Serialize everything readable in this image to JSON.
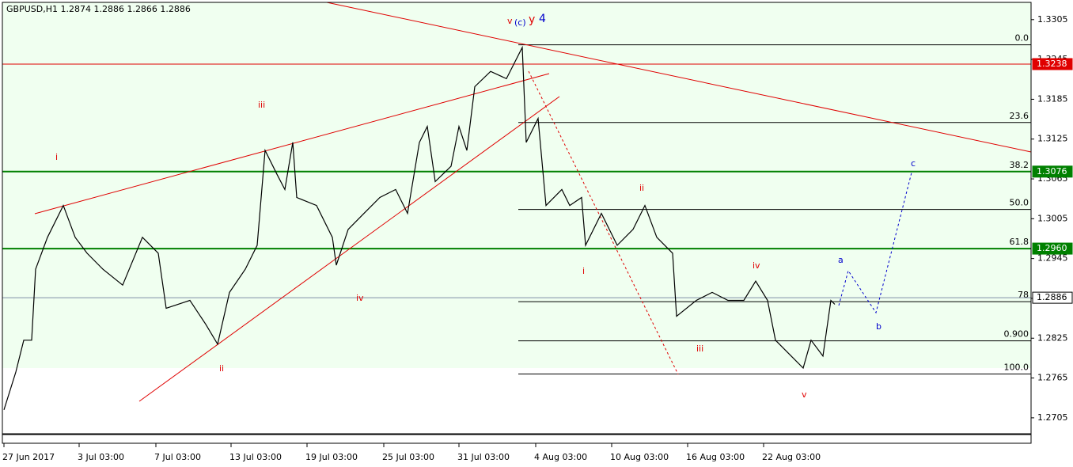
{
  "chart_data": {
    "type": "line",
    "title": "GBPUSD,H1  1.2874 1.2886 1.2866 1.2886",
    "x": [
      0,
      15,
      25,
      35,
      40,
      55,
      75,
      90,
      105,
      125,
      150,
      175,
      195,
      205,
      235,
      255,
      270,
      285,
      305,
      320,
      330,
      345,
      355,
      365,
      370,
      395,
      415,
      420,
      435,
      455,
      475,
      495,
      510,
      525,
      535,
      545,
      565,
      575,
      585,
      595,
      615,
      635,
      655,
      660,
      675,
      685,
      705,
      715,
      730,
      735,
      755,
      775,
      795,
      810,
      825,
      845,
      850,
      875,
      895,
      915,
      935,
      950,
      965,
      975,
      995,
      1010,
      1020,
      1035,
      1045,
      1050
    ],
    "series": [
      {
        "name": "GBPUSD",
        "color": "#000000",
        "values": [
          1.2717,
          1.2774,
          1.2822,
          1.2822,
          1.2929,
          1.2977,
          1.3025,
          1.2977,
          1.2953,
          1.2929,
          1.2905,
          1.2977,
          1.2953,
          1.287,
          1.2882,
          1.2846,
          1.2816,
          1.2894,
          1.2929,
          1.2965,
          1.3108,
          1.3072,
          1.3049,
          1.312,
          1.3037,
          1.3025,
          1.2977,
          1.2935,
          1.2989,
          1.3013,
          1.3037,
          1.3049,
          1.3013,
          1.312,
          1.3144,
          1.3061,
          1.3084,
          1.3144,
          1.3108,
          1.3204,
          1.3227,
          1.3216,
          1.3263,
          1.312,
          1.3156,
          1.3025,
          1.3049,
          1.3025,
          1.3037,
          1.2965,
          1.3013,
          1.2965,
          1.2989,
          1.3025,
          1.2977,
          1.2953,
          1.2858,
          1.2882,
          1.2894,
          1.2882,
          1.2882,
          1.2911,
          1.2882,
          1.2822,
          1.2798,
          1.278,
          1.2822,
          1.2798,
          1.2882,
          1.2876
        ]
      }
    ],
    "xlim": [
      -2,
      1298
    ],
    "xticks": [
      {
        "value": 0,
        "label": "27 Jun 2017"
      },
      {
        "value": 95,
        "label": "3 Jul 03:00"
      },
      {
        "value": 192,
        "label": "7 Jul 03:00"
      },
      {
        "value": 287,
        "label": "13 Jul 03:00"
      },
      {
        "value": 383,
        "label": "19 Jul 03:00"
      },
      {
        "value": 480,
        "label": "25 Jul 03:00"
      },
      {
        "value": 575,
        "label": "31 Jul 03:00"
      },
      {
        "value": 672,
        "label": "4 Aug 03:00"
      },
      {
        "value": 768,
        "label": "10 Aug 03:00"
      },
      {
        "value": 864,
        "label": "16 Aug 03:00"
      },
      {
        "value": 960,
        "label": "22 Aug 03:00"
      }
    ],
    "ylim": [
      1.2681,
      1.3331
    ],
    "yticks": [
      1.3305,
      1.3245,
      1.3185,
      1.3125,
      1.3065,
      1.3005,
      1.2945,
      1.2885,
      1.2825,
      1.2765,
      1.2705
    ],
    "levels": [
      {
        "value": 1.3238,
        "label": "1.3238",
        "color": "#e00000"
      },
      {
        "value": 1.3076,
        "label": "1.3076",
        "color": "#008000"
      },
      {
        "value": 1.296,
        "label": "1.2960",
        "color": "#008000"
      },
      {
        "value": 1.2886,
        "label": "1.2886",
        "color": "#7f8fa6"
      }
    ],
    "fib_levels": [
      {
        "value": 1.3267,
        "label": "0.0"
      },
      {
        "value": 1.315,
        "label": "23.6"
      },
      {
        "value": 1.3076,
        "label": "38.2"
      },
      {
        "value": 1.3019,
        "label": "50.0"
      },
      {
        "value": 1.296,
        "label": "61.8"
      },
      {
        "value": 1.288,
        "label": "78"
      },
      {
        "value": 1.2821,
        "label": "0.900"
      },
      {
        "value": 1.2771,
        "label": "100.0"
      }
    ],
    "annotations": [
      "v",
      "(c)",
      "y",
      "4",
      "i",
      "iii",
      "ii",
      "iv",
      "i",
      "ii",
      "iii",
      "iv",
      "v",
      "a",
      "b",
      "c"
    ]
  }
}
